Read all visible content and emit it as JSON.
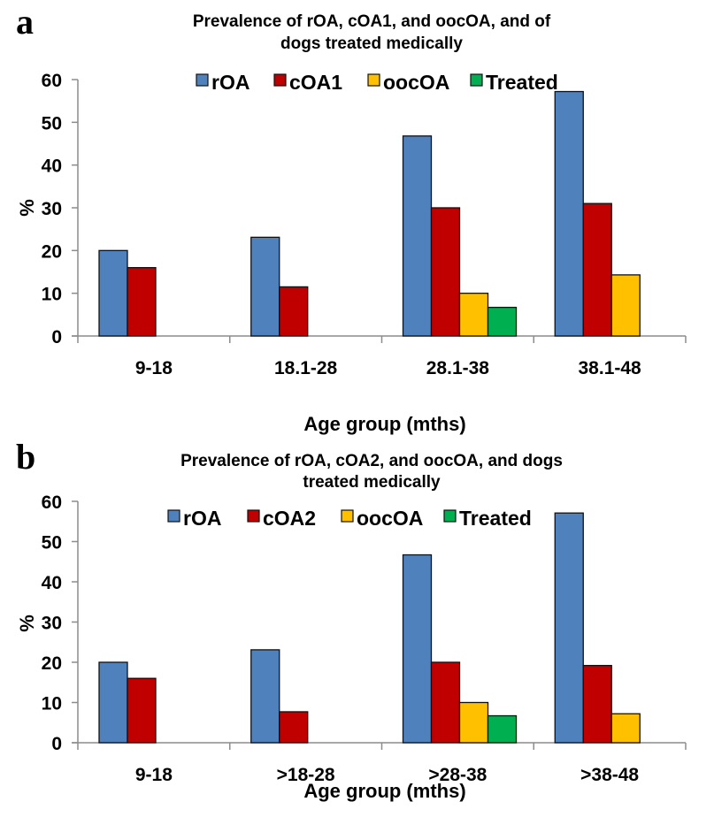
{
  "chart_data": [
    {
      "panel": "a",
      "type": "bar",
      "title": [
        "Prevalence of rOA, cOA1, and oocOA, and of",
        "dogs treated medically"
      ],
      "xlabel": "Age group (mths)",
      "ylabel": "%",
      "ylim": [
        0,
        60
      ],
      "yticks": [
        0,
        10,
        20,
        30,
        40,
        50,
        60
      ],
      "grid": false,
      "legend_position": "top-center",
      "categories": [
        "9-18",
        "18.1-28",
        "28.1-38",
        "38.1-48"
      ],
      "series": [
        {
          "name": "rOA",
          "color": "#4F81BD",
          "values": [
            20,
            23.1,
            46.8,
            57.2
          ]
        },
        {
          "name": "cOA1",
          "color": "#C00000",
          "values": [
            16,
            11.5,
            30,
            31
          ]
        },
        {
          "name": "oocOA",
          "color": "#FFC000",
          "values": [
            0,
            0,
            10,
            14.3
          ]
        },
        {
          "name": "Treated",
          "color": "#00B050",
          "values": [
            0,
            0,
            6.7,
            0
          ]
        }
      ]
    },
    {
      "panel": "b",
      "type": "bar",
      "title": [
        "Prevalence of rOA, cOA2, and oocOA, and dogs",
        "treated medically"
      ],
      "xlabel": "Age group (mths)",
      "ylabel": "%",
      "ylim": [
        0,
        60
      ],
      "yticks": [
        0,
        10,
        20,
        30,
        40,
        50,
        60
      ],
      "grid": false,
      "legend_position": "top-center",
      "categories": [
        "9-18",
        ">18-28",
        ">28-38",
        ">38-48"
      ],
      "series": [
        {
          "name": "rOA",
          "color": "#4F81BD",
          "values": [
            20,
            23.1,
            46.7,
            57.1
          ]
        },
        {
          "name": "cOA2",
          "color": "#C00000",
          "values": [
            16,
            7.7,
            20,
            19.2
          ]
        },
        {
          "name": "oocOA",
          "color": "#FFC000",
          "values": [
            0,
            0,
            10,
            7.2
          ]
        },
        {
          "name": "Treated",
          "color": "#00B050",
          "values": [
            0,
            0,
            6.7,
            0
          ]
        }
      ]
    }
  ]
}
